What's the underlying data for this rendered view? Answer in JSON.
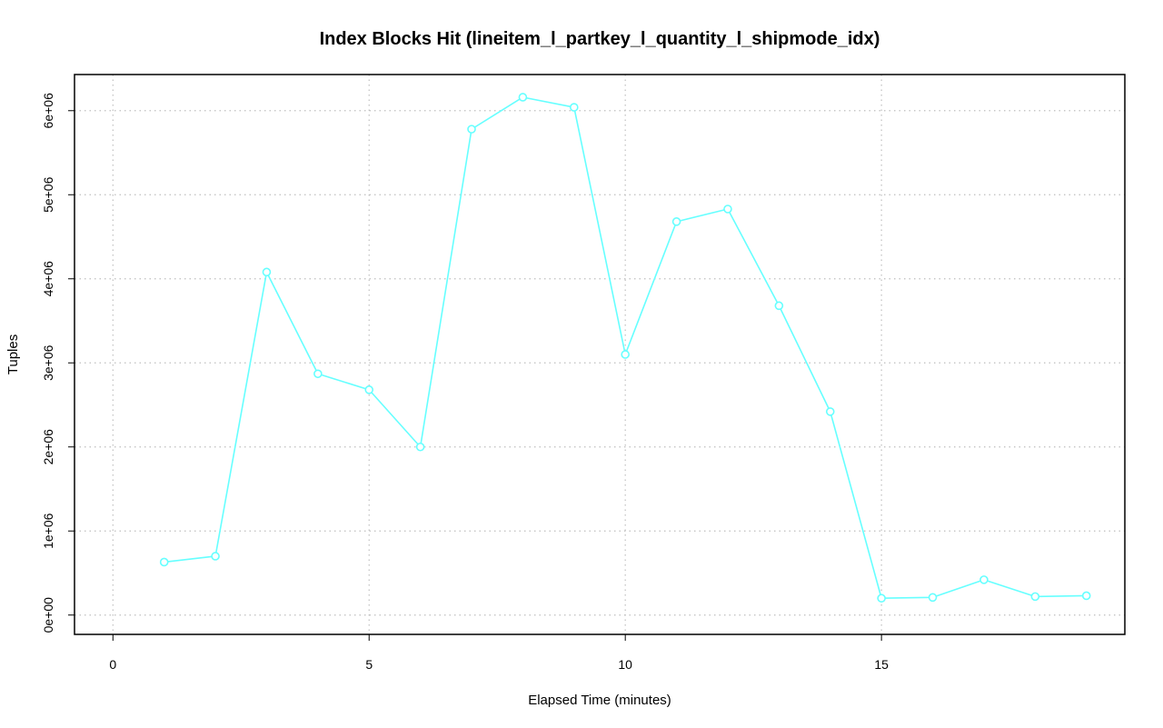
{
  "chart_data": {
    "type": "line",
    "title": "Index Blocks Hit (lineitem_l_partkey_l_quantity_l_shipmode_idx)",
    "xlabel": "Elapsed Time (minutes)",
    "ylabel": "Tuples",
    "xlim": [
      -0.75,
      19.75
    ],
    "ylim": [
      -230000,
      6430000
    ],
    "x_ticks": [
      0,
      5,
      10,
      15
    ],
    "x_tick_labels": [
      "0",
      "5",
      "10",
      "15"
    ],
    "y_ticks": [
      0,
      1000000,
      2000000,
      3000000,
      4000000,
      5000000,
      6000000
    ],
    "y_tick_labels": [
      "0e+00",
      "1e+06",
      "2e+06",
      "3e+06",
      "4e+06",
      "5e+06",
      "6e+06"
    ],
    "grid": true,
    "series": [
      {
        "color": "#66ffff",
        "marker": "open-circle",
        "x": [
          1,
          2,
          3,
          4,
          5,
          6,
          7,
          8,
          9,
          10,
          11,
          12,
          13,
          14,
          15,
          16,
          17,
          18,
          19
        ],
        "values": [
          630000,
          700000,
          4080000,
          2870000,
          2680000,
          2000000,
          5780000,
          6160000,
          6040000,
          3100000,
          4680000,
          4830000,
          3680000,
          2420000,
          200000,
          210000,
          420000,
          220000,
          230000
        ]
      }
    ]
  }
}
